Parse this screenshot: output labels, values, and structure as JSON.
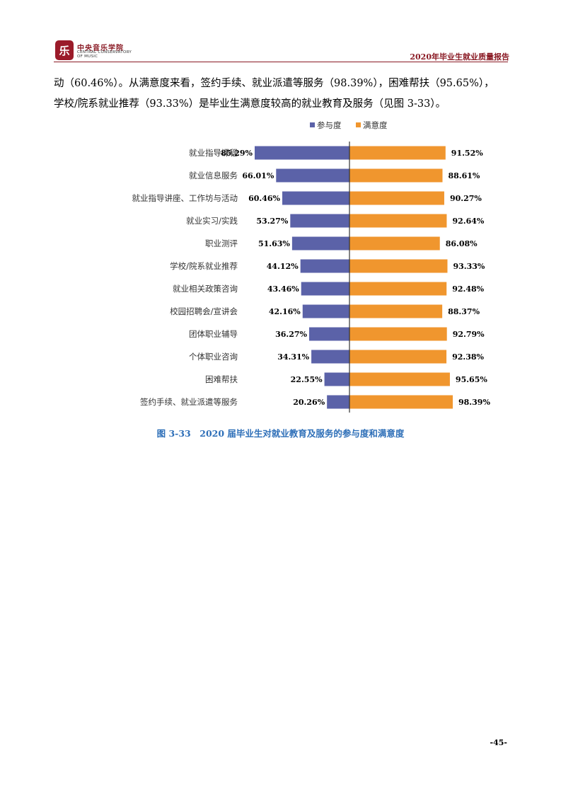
{
  "header": {
    "logo_glyph": "乐",
    "logo_cn": "中央音乐学院",
    "logo_en_line1": "CENTRAL CONSERVATORY",
    "logo_en_line2": "OF MUSIC",
    "report_title": "2020年毕业生就业质量报告"
  },
  "body": {
    "line1": "动（60.46%）。从满意度来看，签约手续、就业派遣等服务（98.39%），困难帮扶（95.65%），",
    "line2": "学校/院系就业推荐（93.33%）是毕业生满意度较高的就业教育及服务（见图 3-33）。"
  },
  "chart_data": {
    "type": "bar",
    "orientation": "horizontal-diverging",
    "categories": [
      "就业指导课程",
      "就业信息服务",
      "就业指导讲座、工作坊与活动",
      "就业实习/实践",
      "职业测评",
      "学校/院系就业推荐",
      "就业相关政策咨询",
      "校园招聘会/宣讲会",
      "团体职业辅导",
      "个体职业咨询",
      "困难帮扶",
      "签约手续、就业派遣等服务"
    ],
    "series": [
      {
        "name": "参与度",
        "color": "#5b62a8",
        "values": [
          85.29,
          66.01,
          60.46,
          53.27,
          51.63,
          44.12,
          43.46,
          42.16,
          36.27,
          34.31,
          22.55,
          20.26
        ]
      },
      {
        "name": "满意度",
        "color": "#f0962e",
        "values": [
          91.52,
          88.61,
          90.27,
          92.64,
          86.08,
          93.33,
          92.48,
          88.37,
          92.79,
          92.38,
          95.65,
          98.39
        ]
      }
    ],
    "value_format": "%",
    "legend_position": "top-center"
  },
  "caption": "图 3-33　2020 届毕业生对就业教育及服务的参与度和满意度",
  "page_number": "-45-"
}
